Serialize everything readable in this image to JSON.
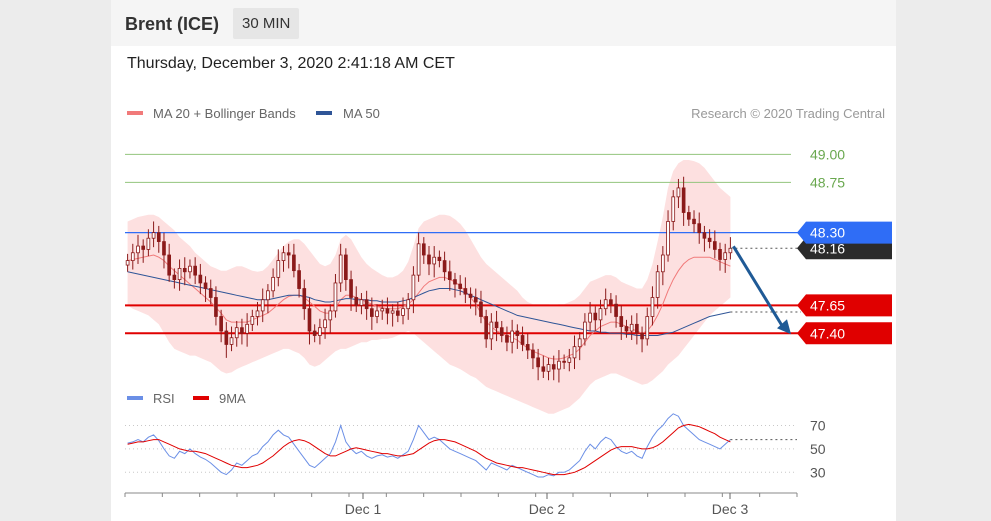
{
  "header": {
    "instrument": "Brent (ICE)",
    "interval": "30 MIN"
  },
  "timestamp": "Thursday, December 3, 2020 2:41:18 AM CET",
  "legend": {
    "ma20": "MA 20 + Bollinger Bands",
    "ma50": "MA 50",
    "copyright": "Research © 2020 Trading Central",
    "rsi": "RSI",
    "ma9": "9MA"
  },
  "colors": {
    "ma20": "#f17a7a",
    "ma50": "#2f5597",
    "bands": "#fde0e0",
    "resistance": "#93c47d",
    "pivot": "#2f6df6",
    "support": "#e00000",
    "candle": "#8b1a1a",
    "rsi": "#6b8fe6",
    "rsi_ma": "#e00000",
    "arrow": "#1f5a96"
  },
  "chart_data": [
    {
      "type": "candlestick",
      "title": "Brent (ICE)",
      "ylim": [
        47.0,
        49.2
      ],
      "x_ticks": [
        "Dec 1",
        "Dec 2",
        "Dec 3"
      ],
      "levels": {
        "resistance": [
          49.0,
          48.75
        ],
        "pivot": 48.3,
        "last": 48.16,
        "support": [
          47.65,
          47.4
        ]
      },
      "level_labels": {
        "r2": "49.00",
        "r1": "48.75",
        "pivot": "48.30",
        "last": "48.16",
        "s1": "47.65",
        "s2": "47.40"
      },
      "close": [
        48.05,
        48.12,
        48.18,
        48.15,
        48.25,
        48.3,
        48.22,
        48.1,
        47.92,
        47.88,
        47.98,
        47.95,
        48.0,
        47.92,
        47.85,
        47.8,
        47.72,
        47.55,
        47.42,
        47.3,
        47.36,
        47.45,
        47.4,
        47.48,
        47.55,
        47.6,
        47.7,
        47.78,
        47.9,
        48.05,
        48.12,
        48.1,
        47.96,
        47.8,
        47.62,
        47.42,
        47.38,
        47.45,
        47.52,
        47.6,
        47.85,
        48.1,
        47.88,
        47.72,
        47.65,
        47.7,
        47.62,
        47.55,
        47.6,
        47.62,
        47.58,
        47.6,
        47.56,
        47.62,
        47.7,
        47.92,
        48.2,
        48.1,
        48.02,
        48.08,
        48.05,
        47.95,
        47.88,
        47.84,
        47.8,
        47.75,
        47.72,
        47.68,
        47.55,
        47.35,
        47.5,
        47.45,
        47.38,
        47.32,
        47.42,
        47.38,
        47.3,
        47.25,
        47.18,
        47.1,
        47.06,
        47.12,
        47.08,
        47.15,
        47.14,
        47.18,
        47.28,
        47.35,
        47.5,
        47.58,
        47.52,
        47.62,
        47.7,
        47.66,
        47.55,
        47.46,
        47.42,
        47.48,
        47.4,
        47.35,
        47.55,
        47.72,
        47.95,
        48.1,
        48.4,
        48.62,
        48.7,
        48.48,
        48.42,
        48.38,
        48.3,
        48.25,
        48.22,
        48.15,
        48.06,
        48.12,
        48.16
      ],
      "bb_upper": [
        48.4,
        48.42,
        48.44,
        48.45,
        48.46,
        48.46,
        48.44,
        48.4,
        48.36,
        48.32,
        48.26,
        48.22,
        48.18,
        48.12,
        48.08,
        48.04,
        48.0,
        47.98,
        47.96,
        47.96,
        47.98,
        48.0,
        48.0,
        47.98,
        47.96,
        47.95,
        47.96,
        48.0,
        48.06,
        48.12,
        48.18,
        48.22,
        48.24,
        48.24,
        48.2,
        48.14,
        48.08,
        48.02,
        48.0,
        48.02,
        48.1,
        48.24,
        48.28,
        48.24,
        48.16,
        48.08,
        48.02,
        47.98,
        47.95,
        47.92,
        47.9,
        47.9,
        47.92,
        47.96,
        48.04,
        48.18,
        48.34,
        48.4,
        48.42,
        48.44,
        48.46,
        48.46,
        48.45,
        48.42,
        48.38,
        48.32,
        48.24,
        48.16,
        48.08,
        48.02,
        47.98,
        47.94,
        47.9,
        47.86,
        47.82,
        47.78,
        47.72,
        47.68,
        47.66,
        47.66,
        47.66,
        47.66,
        47.65,
        47.66,
        47.66,
        47.68,
        47.7,
        47.74,
        47.8,
        47.86,
        47.88,
        47.9,
        47.92,
        47.92,
        47.9,
        47.86,
        47.84,
        47.82,
        47.8,
        47.8,
        47.88,
        48.02,
        48.22,
        48.44,
        48.7,
        48.85,
        48.92,
        48.95,
        48.95,
        48.94,
        48.92,
        48.88,
        48.82,
        48.76,
        48.7,
        48.66,
        48.62
      ],
      "bb_lower": [
        47.65,
        47.62,
        47.6,
        47.58,
        47.56,
        47.52,
        47.48,
        47.4,
        47.32,
        47.26,
        47.24,
        47.22,
        47.2,
        47.2,
        47.18,
        47.16,
        47.14,
        47.1,
        47.06,
        47.04,
        47.05,
        47.08,
        47.1,
        47.12,
        47.14,
        47.16,
        47.18,
        47.2,
        47.22,
        47.24,
        47.26,
        47.26,
        47.24,
        47.22,
        47.18,
        47.12,
        47.1,
        47.12,
        47.16,
        47.2,
        47.24,
        47.26,
        47.26,
        47.28,
        47.3,
        47.32,
        47.32,
        47.34,
        47.34,
        47.35,
        47.35,
        47.36,
        47.38,
        47.4,
        47.42,
        47.4,
        47.36,
        47.32,
        47.28,
        47.24,
        47.2,
        47.16,
        47.12,
        47.1,
        47.08,
        47.05,
        47.02,
        47.0,
        46.96,
        46.92,
        46.9,
        46.88,
        46.86,
        46.84,
        46.82,
        46.8,
        46.78,
        46.76,
        46.74,
        46.72,
        46.7,
        46.68,
        46.68,
        46.7,
        46.72,
        46.74,
        46.78,
        46.82,
        46.88,
        46.94,
        46.98,
        47.0,
        47.02,
        47.04,
        47.04,
        47.02,
        47.0,
        46.98,
        46.96,
        46.94,
        46.95,
        46.98,
        47.02,
        47.06,
        47.12,
        47.16,
        47.2,
        47.26,
        47.32,
        47.38,
        47.44,
        47.5,
        47.56,
        47.6,
        47.64,
        47.68,
        47.72
      ],
      "ma20": [
        48.05,
        48.06,
        48.07,
        48.08,
        48.09,
        48.1,
        48.08,
        48.05,
        48.0,
        47.96,
        47.92,
        47.88,
        47.84,
        47.8,
        47.76,
        47.72,
        47.68,
        47.63,
        47.58,
        47.52,
        47.5,
        47.5,
        47.5,
        47.5,
        47.52,
        47.54,
        47.56,
        47.58,
        47.62,
        47.66,
        47.7,
        47.73,
        47.74,
        47.74,
        47.72,
        47.68,
        47.64,
        47.6,
        47.58,
        47.58,
        47.62,
        47.7,
        47.74,
        47.74,
        47.72,
        47.7,
        47.68,
        47.66,
        47.64,
        47.63,
        47.62,
        47.62,
        47.62,
        47.64,
        47.66,
        47.7,
        47.76,
        47.82,
        47.86,
        47.88,
        47.9,
        47.9,
        47.88,
        47.86,
        47.82,
        47.78,
        47.72,
        47.66,
        47.58,
        47.5,
        47.46,
        47.42,
        47.4,
        47.38,
        47.36,
        47.34,
        47.3,
        47.27,
        47.24,
        47.22,
        47.2,
        47.18,
        47.17,
        47.17,
        47.18,
        47.2,
        47.22,
        47.26,
        47.32,
        47.38,
        47.42,
        47.46,
        47.48,
        47.5,
        47.5,
        47.48,
        47.46,
        47.44,
        47.42,
        47.4,
        47.42,
        47.48,
        47.56,
        47.66,
        47.78,
        47.88,
        47.96,
        48.02,
        48.06,
        48.08,
        48.08,
        48.08,
        48.08,
        48.06,
        48.04,
        48.02,
        48.0
      ],
      "ma50": [
        47.95,
        47.94,
        47.93,
        47.92,
        47.91,
        47.9,
        47.89,
        47.88,
        47.87,
        47.86,
        47.85,
        47.84,
        47.83,
        47.82,
        47.81,
        47.8,
        47.79,
        47.78,
        47.77,
        47.76,
        47.75,
        47.74,
        47.73,
        47.72,
        47.71,
        47.7,
        47.7,
        47.7,
        47.71,
        47.72,
        47.73,
        47.74,
        47.74,
        47.74,
        47.73,
        47.72,
        47.7,
        47.69,
        47.68,
        47.68,
        47.69,
        47.7,
        47.71,
        47.71,
        47.7,
        47.7,
        47.7,
        47.69,
        47.69,
        47.68,
        47.68,
        47.68,
        47.68,
        47.69,
        47.7,
        47.72,
        47.74,
        47.76,
        47.78,
        47.79,
        47.8,
        47.8,
        47.8,
        47.79,
        47.78,
        47.76,
        47.74,
        47.72,
        47.7,
        47.68,
        47.66,
        47.64,
        47.62,
        47.6,
        47.58,
        47.56,
        47.55,
        47.54,
        47.53,
        47.52,
        47.51,
        47.5,
        47.49,
        47.48,
        47.47,
        47.46,
        47.45,
        47.44,
        47.43,
        47.42,
        47.42,
        47.41,
        47.41,
        47.4,
        47.4,
        47.4,
        47.39,
        47.39,
        47.38,
        47.38,
        47.38,
        47.38,
        47.38,
        47.39,
        47.4,
        47.41,
        47.43,
        47.45,
        47.47,
        47.49,
        47.51,
        47.53,
        47.55,
        47.56,
        47.57,
        47.58,
        47.59
      ]
    },
    {
      "type": "line",
      "title": "RSI",
      "ylim": [
        20,
        85
      ],
      "y_ticks": [
        70,
        50,
        30
      ],
      "x_ticks": [
        "Dec 1",
        "Dec 2",
        "Dec 3"
      ],
      "series": [
        {
          "name": "RSI",
          "values": [
            55,
            56,
            58,
            56,
            60,
            62,
            57,
            50,
            44,
            42,
            48,
            46,
            50,
            46,
            43,
            41,
            38,
            34,
            30,
            28,
            32,
            38,
            36,
            40,
            44,
            46,
            52,
            56,
            62,
            66,
            62,
            60,
            54,
            48,
            42,
            36,
            34,
            38,
            42,
            46,
            56,
            70,
            56,
            50,
            46,
            48,
            44,
            42,
            44,
            45,
            43,
            44,
            42,
            45,
            48,
            58,
            70,
            64,
            58,
            60,
            58,
            54,
            50,
            48,
            46,
            44,
            42,
            40,
            36,
            32,
            38,
            36,
            34,
            32,
            36,
            34,
            32,
            30,
            28,
            26,
            26,
            28,
            27,
            30,
            30,
            32,
            36,
            40,
            48,
            54,
            50,
            56,
            60,
            58,
            52,
            48,
            46,
            48,
            44,
            42,
            52,
            60,
            66,
            70,
            76,
            80,
            78,
            70,
            66,
            62,
            58,
            56,
            54,
            52,
            50,
            54,
            58
          ]
        },
        {
          "name": "9MA",
          "values": [
            54,
            55,
            56,
            56,
            57,
            58,
            58,
            56,
            54,
            52,
            50,
            49,
            48,
            48,
            47,
            46,
            44,
            42,
            40,
            38,
            36,
            35,
            34,
            34,
            35,
            36,
            38,
            41,
            44,
            48,
            52,
            55,
            57,
            58,
            57,
            55,
            52,
            49,
            46,
            44,
            44,
            46,
            48,
            50,
            51,
            50,
            49,
            48,
            47,
            46,
            46,
            45,
            44,
            44,
            45,
            46,
            49,
            52,
            55,
            57,
            58,
            58,
            57,
            56,
            54,
            52,
            50,
            48,
            45,
            42,
            40,
            38,
            37,
            36,
            35,
            34,
            34,
            33,
            32,
            31,
            30,
            29,
            28,
            28,
            28,
            29,
            30,
            32,
            34,
            37,
            40,
            43,
            46,
            49,
            51,
            52,
            52,
            52,
            51,
            50,
            50,
            51,
            53,
            56,
            60,
            64,
            68,
            70,
            71,
            70,
            69,
            67,
            65,
            63,
            60,
            58,
            56
          ]
        }
      ]
    }
  ]
}
